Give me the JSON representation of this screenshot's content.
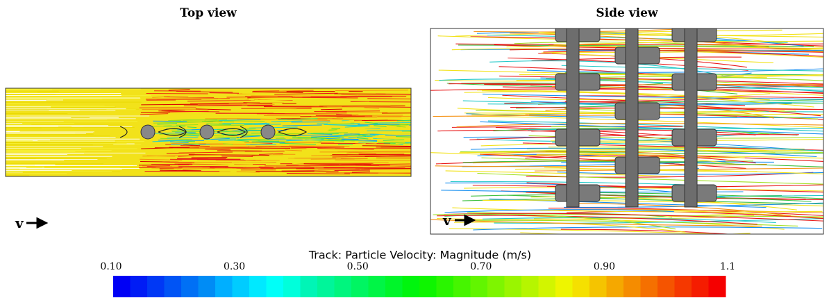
{
  "panels": [
    {
      "title": "Top view",
      "velocity_label": "v"
    },
    {
      "title": "Side view",
      "velocity_label": "v"
    }
  ],
  "colorbar": {
    "title": "Track: Particle Velocity: Magnitude (m/s)",
    "range": [
      0.1,
      1.1
    ],
    "ticks": [
      {
        "value": 0.1,
        "label": "0.10"
      },
      {
        "value": 0.3,
        "label": "0.30"
      },
      {
        "value": 0.5,
        "label": "0.50"
      },
      {
        "value": 0.7,
        "label": "0.70"
      },
      {
        "value": 0.9,
        "label": "0.90"
      },
      1.1
    ]
  }
}
